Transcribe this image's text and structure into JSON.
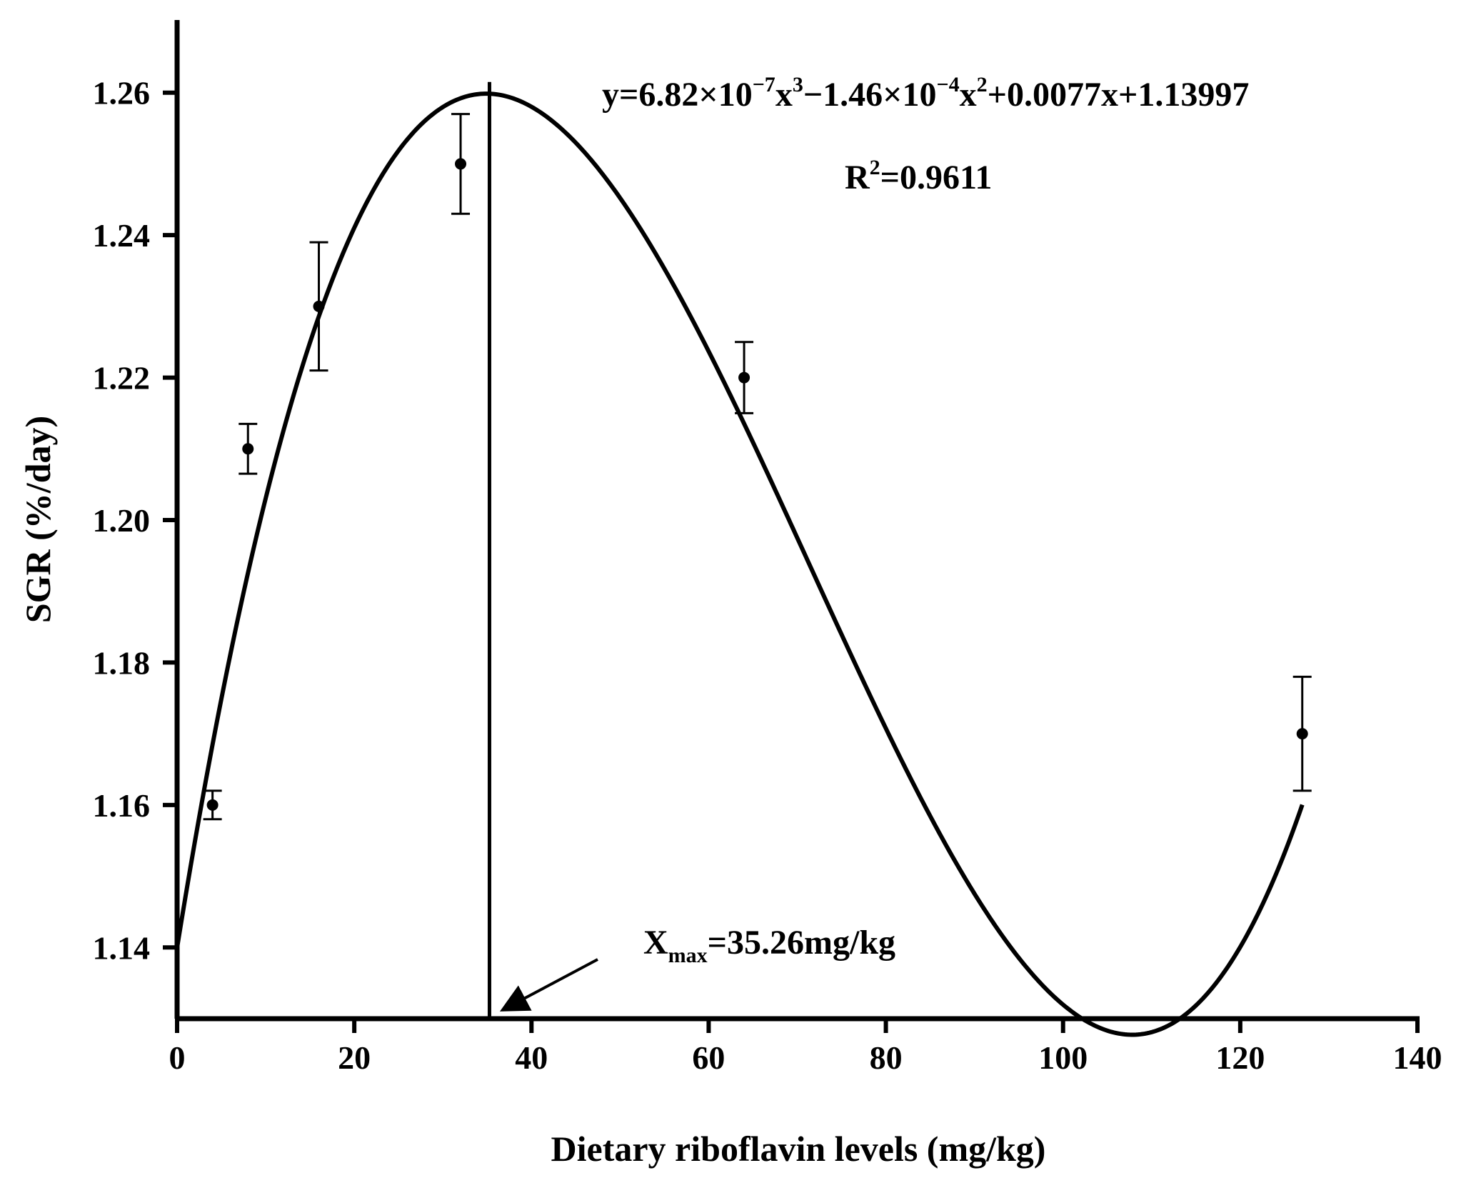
{
  "chart_data": {
    "type": "scatter",
    "xlabel": "Dietary riboflavin levels (mg/kg)",
    "ylabel": "SGR (%/day)",
    "xlim": [
      0,
      140
    ],
    "ylim": [
      1.13,
      1.27
    ],
    "x_ticks": [
      "0",
      "20",
      "40",
      "60",
      "80",
      "100",
      "120",
      "140"
    ],
    "y_ticks": [
      "1.14",
      "1.16",
      "1.18",
      "1.20",
      "1.22",
      "1.24",
      "1.26"
    ],
    "grid": false,
    "points": [
      {
        "x": 4,
        "y": 1.16,
        "err": 0.002
      },
      {
        "x": 8,
        "y": 1.21,
        "err": 0.0035
      },
      {
        "x": 16,
        "y": 1.23,
        "err": 0.009
      },
      {
        "x": 32,
        "y": 1.25,
        "err": 0.007
      },
      {
        "x": 64,
        "y": 1.22,
        "err": 0.005
      },
      {
        "x": 127,
        "y": 1.17,
        "err": 0.008
      }
    ],
    "fit": {
      "type": "cubic",
      "coefficients": {
        "a3": 6.82e-07,
        "a2": -0.000146,
        "a1": 0.0077,
        "a0": 1.13997
      },
      "x_range": [
        0,
        127
      ],
      "equation_parts": {
        "p1": "y=6.82×10",
        "e1": "−7",
        "p2": "x",
        "e2": "3",
        "p3": "−1.46×10",
        "e3": "−4",
        "p4": "x",
        "e4": "2",
        "p5": "+0.0077x+1.13997"
      },
      "r2_parts": {
        "base": "R",
        "exp": "2",
        "rest": "=0.9611"
      }
    },
    "annotation": {
      "x": 35.26,
      "peak_y": 1.2615,
      "label_base": "X",
      "label_sub": "max",
      "label_rest": "=35.26mg/kg"
    }
  }
}
